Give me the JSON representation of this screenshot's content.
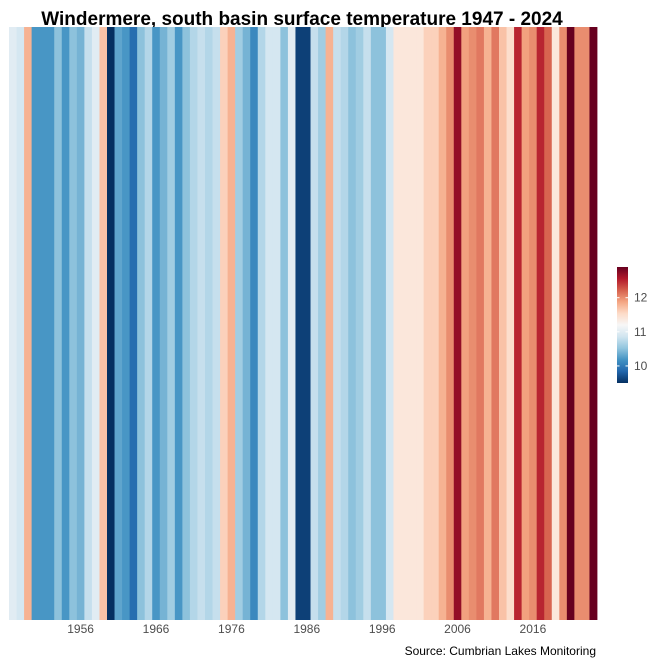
{
  "chart_data": {
    "type": "heatmap",
    "title": "Windermere, south basin surface temperature 1947 - 2024",
    "caption": "Source: Cumbrian Lakes Monitoring",
    "x": [
      1947,
      1948,
      1949,
      1950,
      1951,
      1952,
      1953,
      1954,
      1955,
      1956,
      1957,
      1958,
      1959,
      1960,
      1961,
      1962,
      1963,
      1964,
      1965,
      1966,
      1967,
      1968,
      1969,
      1970,
      1971,
      1972,
      1973,
      1974,
      1975,
      1976,
      1977,
      1978,
      1979,
      1980,
      1981,
      1982,
      1983,
      1984,
      1985,
      1986,
      1987,
      1988,
      1989,
      1990,
      1991,
      1992,
      1993,
      1994,
      1995,
      1996,
      1997,
      1998,
      1999,
      2000,
      2001,
      2002,
      2003,
      2004,
      2005,
      2006,
      2007,
      2008,
      2009,
      2010,
      2011,
      2012,
      2013,
      2014,
      2015,
      2016,
      2017,
      2018,
      2019,
      2020,
      2021,
      2022,
      2023,
      2024
    ],
    "values": [
      11.0,
      10.9,
      11.8,
      10.2,
      10.2,
      10.2,
      10.5,
      10.2,
      10.5,
      10.4,
      10.8,
      11.0,
      11.7,
      9.5,
      10.3,
      10.2,
      9.9,
      10.5,
      10.7,
      10.2,
      10.4,
      10.6,
      10.2,
      10.5,
      10.7,
      10.8,
      10.7,
      10.8,
      11.6,
      11.8,
      10.6,
      10.4,
      10.1,
      10.7,
      10.9,
      10.9,
      10.5,
      11.0,
      9.6,
      9.6,
      10.8,
      10.6,
      11.8,
      10.8,
      10.7,
      10.5,
      10.6,
      10.8,
      10.5,
      10.5,
      10.9,
      11.4,
      11.4,
      11.4,
      11.4,
      11.6,
      11.6,
      11.8,
      12.0,
      12.7,
      11.9,
      12.0,
      12.1,
      11.8,
      12.1,
      11.7,
      11.5,
      12.5,
      11.9,
      12.0,
      12.5,
      12.2,
      11.4,
      12.0,
      12.9,
      12.0,
      12.0,
      12.9
    ],
    "color_scale": {
      "low": 9.5,
      "high": 12.9,
      "stops": [
        "#053061",
        "#2166ac",
        "#4393c3",
        "#92c5de",
        "#d1e5f0",
        "#f7f7f7",
        "#fddbc7",
        "#f4a582",
        "#d6604d",
        "#b2182b",
        "#67001f"
      ]
    },
    "x_ticks": [
      1956,
      1966,
      1976,
      1986,
      1996,
      2006,
      2016
    ],
    "legend": {
      "position": "right",
      "ticks": [
        10,
        11,
        12
      ]
    },
    "grid": false
  }
}
